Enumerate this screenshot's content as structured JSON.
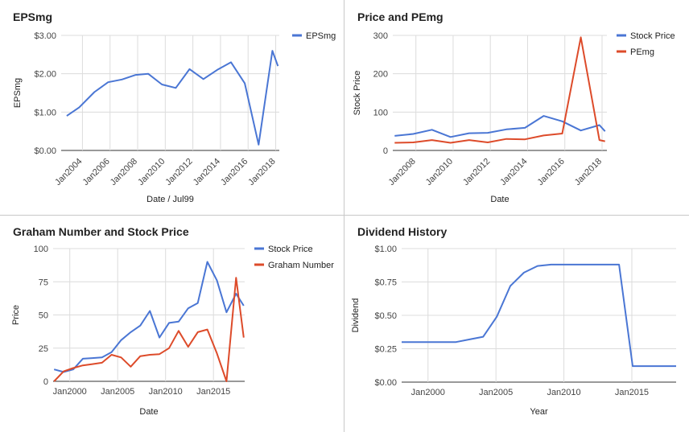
{
  "chart_data": [
    {
      "type": "line",
      "title": "EPSmg",
      "xlabel": "Date / Jul99",
      "ylabel": "EPSmg",
      "x_ticks": [
        "Jan2004",
        "Jan2006",
        "Jan2008",
        "Jan2010",
        "Jan2012",
        "Jan2014",
        "Jan2016",
        "Jan2018"
      ],
      "y_ticks": [
        "$0.00",
        "$1.00",
        "$2.00",
        "$3.00"
      ],
      "ylim": [
        0,
        3
      ],
      "xlim": [
        2002.5,
        2018.3
      ],
      "grid": true,
      "legend_position": "right",
      "series": [
        {
          "name": "EPSmg",
          "color": "#4a76d4",
          "x": [
            2002.9,
            2003.8,
            2004.9,
            2005.9,
            2006.9,
            2007.9,
            2008.8,
            2009.8,
            2010.8,
            2011.8,
            2012.8,
            2013.8,
            2014.8,
            2015.8,
            2016.8,
            2017.8,
            2018.2
          ],
          "y": [
            0.9,
            1.12,
            1.52,
            1.78,
            1.85,
            1.97,
            2.0,
            1.72,
            1.63,
            2.12,
            1.86,
            2.1,
            2.3,
            1.75,
            0.15,
            2.6,
            2.2
          ]
        }
      ]
    },
    {
      "type": "line",
      "title": "Price and PEmg",
      "xlabel": "Date",
      "ylabel": "Stock Price",
      "x_ticks": [
        "Jan2008",
        "Jan2010",
        "Jan2012",
        "Jan2014",
        "Jan2016",
        "Jan2018"
      ],
      "y_ticks": [
        "0",
        "100",
        "200",
        "300"
      ],
      "ylim": [
        0,
        300
      ],
      "xlim": [
        2006.8,
        2018.3
      ],
      "grid": true,
      "legend_position": "right",
      "series": [
        {
          "name": "Stock Price",
          "color": "#4a76d4",
          "x": [
            2006.9,
            2007.9,
            2008.9,
            2009.9,
            2010.9,
            2011.9,
            2012.9,
            2013.9,
            2014.9,
            2015.9,
            2016.9,
            2017.9,
            2018.2
          ],
          "y": [
            38,
            43,
            54,
            35,
            45,
            46,
            55,
            59,
            90,
            76,
            52,
            66,
            50
          ]
        },
        {
          "name": "PEmg",
          "color": "#dd4b2a",
          "x": [
            2006.9,
            2007.9,
            2008.9,
            2009.9,
            2010.9,
            2011.9,
            2012.9,
            2013.9,
            2014.9,
            2015.9,
            2016.9,
            2017.9,
            2018.2
          ],
          "y": [
            20,
            21,
            27,
            20,
            27,
            21,
            30,
            29,
            39,
            44,
            295,
            27,
            24
          ]
        }
      ]
    },
    {
      "type": "line",
      "title": "Graham Number and Stock Price",
      "xlabel": "Date",
      "ylabel": "Price",
      "x_ticks": [
        "Jan2000",
        "Jan2005",
        "Jan2010",
        "Jan2015"
      ],
      "y_ticks": [
        "0",
        "25",
        "50",
        "75",
        "100"
      ],
      "ylim": [
        0,
        100
      ],
      "xlim": [
        1998.3,
        2018.3
      ],
      "grid": true,
      "legend_position": "right",
      "series": [
        {
          "name": "Stock Price",
          "color": "#4a76d4",
          "x": [
            1998.4,
            1999.4,
            2000.4,
            2001.4,
            2002.4,
            2003.4,
            2004.4,
            2005.4,
            2006.4,
            2007.4,
            2008.4,
            2009.4,
            2010.4,
            2011.4,
            2012.4,
            2013.4,
            2014.4,
            2015.4,
            2016.4,
            2017.4,
            2018.2
          ],
          "y": [
            9,
            7,
            9,
            17,
            17.5,
            18,
            22,
            31,
            37,
            42,
            53,
            33,
            44,
            45,
            55,
            59,
            90,
            76,
            52,
            66,
            57
          ]
        },
        {
          "name": "Graham Number",
          "color": "#dd4b2a",
          "x": [
            1998.4,
            1999.4,
            2000.4,
            2001.4,
            2002.4,
            2003.4,
            2004.4,
            2005.4,
            2006.4,
            2007.4,
            2008.4,
            2009.4,
            2010.4,
            2011.4,
            2012.4,
            2013.4,
            2014.4,
            2015.4,
            2016.4,
            2017.4,
            2018.2
          ],
          "y": [
            0,
            7.5,
            10,
            12,
            13,
            14,
            20,
            18,
            11,
            19,
            20,
            20.5,
            25,
            38,
            26,
            37,
            39,
            21,
            0,
            78,
            33
          ]
        }
      ]
    },
    {
      "type": "line",
      "title": "Dividend History",
      "xlabel": "Year",
      "ylabel": "Dividend",
      "x_ticks": [
        "Jan2000",
        "Jan2005",
        "Jan2010",
        "Jan2015"
      ],
      "y_ticks": [
        "$0.00",
        "$0.25",
        "$0.50",
        "$0.75",
        "$1.00"
      ],
      "ylim": [
        0,
        1
      ],
      "xlim": [
        1998.1,
        2018.3
      ],
      "grid": true,
      "legend_position": "none",
      "series": [
        {
          "name": "",
          "color": "#4a76d4",
          "x": [
            1998.1,
            2002.1,
            2003.1,
            2004.1,
            2005.1,
            2006.1,
            2007.1,
            2008.1,
            2009.1,
            2010.1,
            2011.1,
            2012.1,
            2013.1,
            2014.1,
            2015.1,
            2016.1,
            2017.1,
            2018.3
          ],
          "y": [
            0.3,
            0.3,
            0.32,
            0.34,
            0.49,
            0.72,
            0.82,
            0.87,
            0.88,
            0.88,
            0.88,
            0.88,
            0.88,
            0.88,
            0.12,
            0.12,
            0.12,
            0.12
          ]
        }
      ]
    }
  ]
}
